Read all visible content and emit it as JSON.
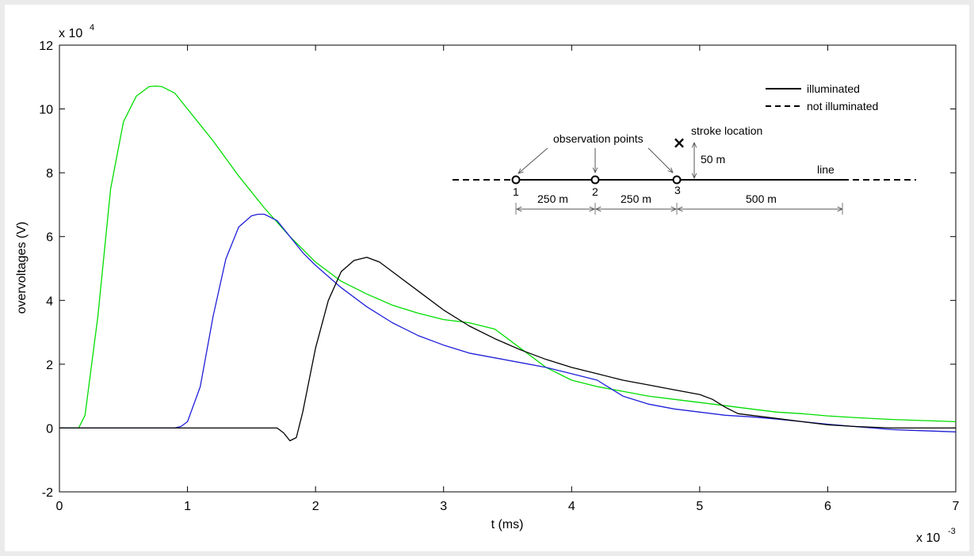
{
  "chart_data": {
    "type": "line",
    "xlabel": "t (ms)",
    "ylabel": "overvoltages (V)",
    "x_multiplier": "x 10",
    "x_multiplier_exp": "-3",
    "y_multiplier": "x 10",
    "y_multiplier_exp": "4",
    "xlim": [
      0,
      7
    ],
    "ylim": [
      -2,
      12
    ],
    "xticks": [
      "0",
      "1",
      "2",
      "3",
      "4",
      "5",
      "6",
      "7"
    ],
    "yticks": [
      "-2",
      "0",
      "2",
      "4",
      "6",
      "8",
      "10",
      "12"
    ],
    "grid": false,
    "series": [
      {
        "color": "#00dd00",
        "x": [
          0,
          0.15,
          0.2,
          0.3,
          0.4,
          0.5,
          0.6,
          0.7,
          0.75,
          0.8,
          0.9,
          1.0,
          1.2,
          1.4,
          1.6,
          1.8,
          2.0,
          2.2,
          2.4,
          2.6,
          2.8,
          3.0,
          3.2,
          3.4,
          3.6,
          3.8,
          4.0,
          4.2,
          4.4,
          4.6,
          4.8,
          5.0,
          5.2,
          5.4,
          5.6,
          5.8,
          6.0,
          6.2,
          6.5,
          7.0
        ],
        "y": [
          0,
          0,
          0.4,
          3.5,
          7.5,
          9.6,
          10.4,
          10.7,
          10.72,
          10.7,
          10.5,
          10.0,
          9.0,
          7.9,
          6.9,
          6.0,
          5.2,
          4.6,
          4.2,
          3.85,
          3.6,
          3.4,
          3.3,
          3.1,
          2.5,
          1.9,
          1.5,
          1.3,
          1.15,
          1.0,
          0.9,
          0.8,
          0.7,
          0.6,
          0.5,
          0.45,
          0.38,
          0.33,
          0.27,
          0.2
        ]
      },
      {
        "color": "#1f1fd9",
        "x": [
          0,
          0.9,
          0.95,
          1.0,
          1.1,
          1.2,
          1.3,
          1.4,
          1.5,
          1.55,
          1.6,
          1.7,
          1.8,
          1.9,
          2.0,
          2.2,
          2.4,
          2.6,
          2.8,
          3.0,
          3.2,
          3.4,
          3.6,
          3.8,
          4.0,
          4.2,
          4.4,
          4.6,
          4.8,
          5.0,
          5.2,
          5.4,
          5.6,
          5.8,
          6.0,
          6.2,
          6.5,
          7.0
        ],
        "y": [
          0,
          0,
          0.05,
          0.2,
          1.3,
          3.5,
          5.3,
          6.3,
          6.65,
          6.7,
          6.7,
          6.5,
          6.0,
          5.5,
          5.1,
          4.4,
          3.8,
          3.3,
          2.9,
          2.6,
          2.35,
          2.2,
          2.05,
          1.9,
          1.7,
          1.5,
          1.0,
          0.75,
          0.6,
          0.5,
          0.4,
          0.35,
          0.28,
          0.2,
          0.12,
          0.05,
          -0.05,
          -0.12
        ]
      },
      {
        "color": "#000000",
        "x": [
          0,
          1.7,
          1.75,
          1.8,
          1.85,
          1.9,
          2.0,
          2.1,
          2.2,
          2.3,
          2.4,
          2.5,
          2.6,
          2.8,
          3.0,
          3.2,
          3.4,
          3.6,
          3.8,
          4.0,
          4.2,
          4.4,
          4.6,
          4.8,
          5.0,
          5.1,
          5.2,
          5.3,
          5.4,
          5.6,
          5.8,
          6.0,
          6.2,
          6.5,
          7.0
        ],
        "y": [
          0,
          0,
          -0.15,
          -0.4,
          -0.3,
          0.5,
          2.5,
          4.0,
          4.9,
          5.25,
          5.35,
          5.2,
          4.9,
          4.3,
          3.7,
          3.2,
          2.8,
          2.45,
          2.15,
          1.9,
          1.7,
          1.5,
          1.35,
          1.2,
          1.05,
          0.9,
          0.65,
          0.45,
          0.4,
          0.3,
          0.2,
          0.1,
          0.05,
          0.0,
          0.0
        ]
      }
    ]
  },
  "inset": {
    "legend_solid": "illuminated",
    "legend_dashed": "not illuminated",
    "observation_points": "observation points",
    "stroke_location": "stroke location",
    "stroke_marker": "×",
    "height": "50 m",
    "line": "line",
    "point_1": "1",
    "point_2": "2",
    "point_3": "3",
    "dist_1": "250 m",
    "dist_2": "250 m",
    "dist_3": "500 m"
  }
}
